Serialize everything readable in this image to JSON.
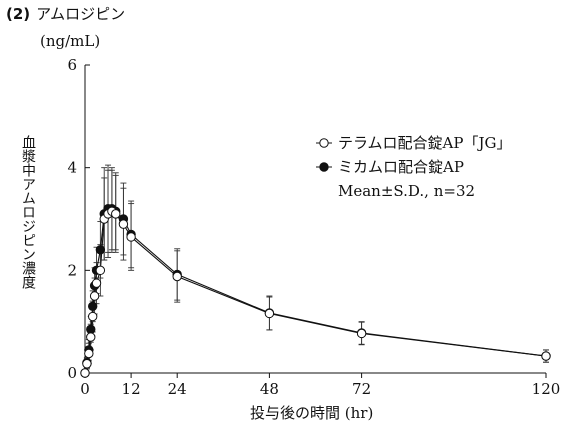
{
  "heading": {
    "number": "(2)",
    "text": "アムロジピン"
  },
  "chart_data": {
    "type": "line",
    "ylabel": "血漿中アムロジピン濃度",
    "yunit": "(ng/mL)",
    "xlabel": "投与後の時間 (hr)",
    "xlim": [
      0,
      120
    ],
    "ylim": [
      0,
      6
    ],
    "xticks": [
      0,
      12,
      24,
      48,
      72,
      120
    ],
    "yticks": [
      0,
      2,
      4,
      6
    ],
    "grid": false,
    "legend_position": "top-right",
    "legend_note": "Mean±S.D., n=32",
    "series": [
      {
        "name": "テラムロ配合錠AP「JG」",
        "marker": "open-circle",
        "color": "#111111",
        "x": [
          0,
          0.5,
          1,
          1.5,
          2,
          2.5,
          3,
          4,
          5,
          6,
          7,
          8,
          10,
          12,
          24,
          48,
          72,
          120
        ],
        "y": [
          0,
          0.18,
          0.38,
          0.7,
          1.1,
          1.5,
          1.75,
          2.0,
          3.0,
          3.1,
          3.15,
          3.1,
          2.9,
          2.65,
          1.88,
          1.16,
          0.77,
          0.33
        ],
        "sd": [
          0,
          0.1,
          0.2,
          0.25,
          0.3,
          0.35,
          0.4,
          0.5,
          0.8,
          0.85,
          0.8,
          0.75,
          0.7,
          0.65,
          0.5,
          0.32,
          0.22,
          0.12
        ]
      },
      {
        "name": "ミカムロ配合錠AP",
        "marker": "filled-circle",
        "color": "#111111",
        "x": [
          0,
          0.5,
          1,
          1.5,
          2,
          2.5,
          3,
          4,
          5,
          6,
          7,
          8,
          10,
          12,
          24,
          48,
          72,
          120
        ],
        "y": [
          0,
          0.2,
          0.45,
          0.85,
          1.3,
          1.7,
          2.0,
          2.4,
          3.1,
          3.2,
          3.2,
          3.15,
          3.0,
          2.7,
          1.92,
          1.17,
          0.78,
          0.33
        ],
        "sd": [
          0,
          0.1,
          0.2,
          0.25,
          0.3,
          0.35,
          0.45,
          0.55,
          0.9,
          0.85,
          0.8,
          0.75,
          0.7,
          0.65,
          0.5,
          0.33,
          0.22,
          0.12
        ]
      }
    ]
  }
}
